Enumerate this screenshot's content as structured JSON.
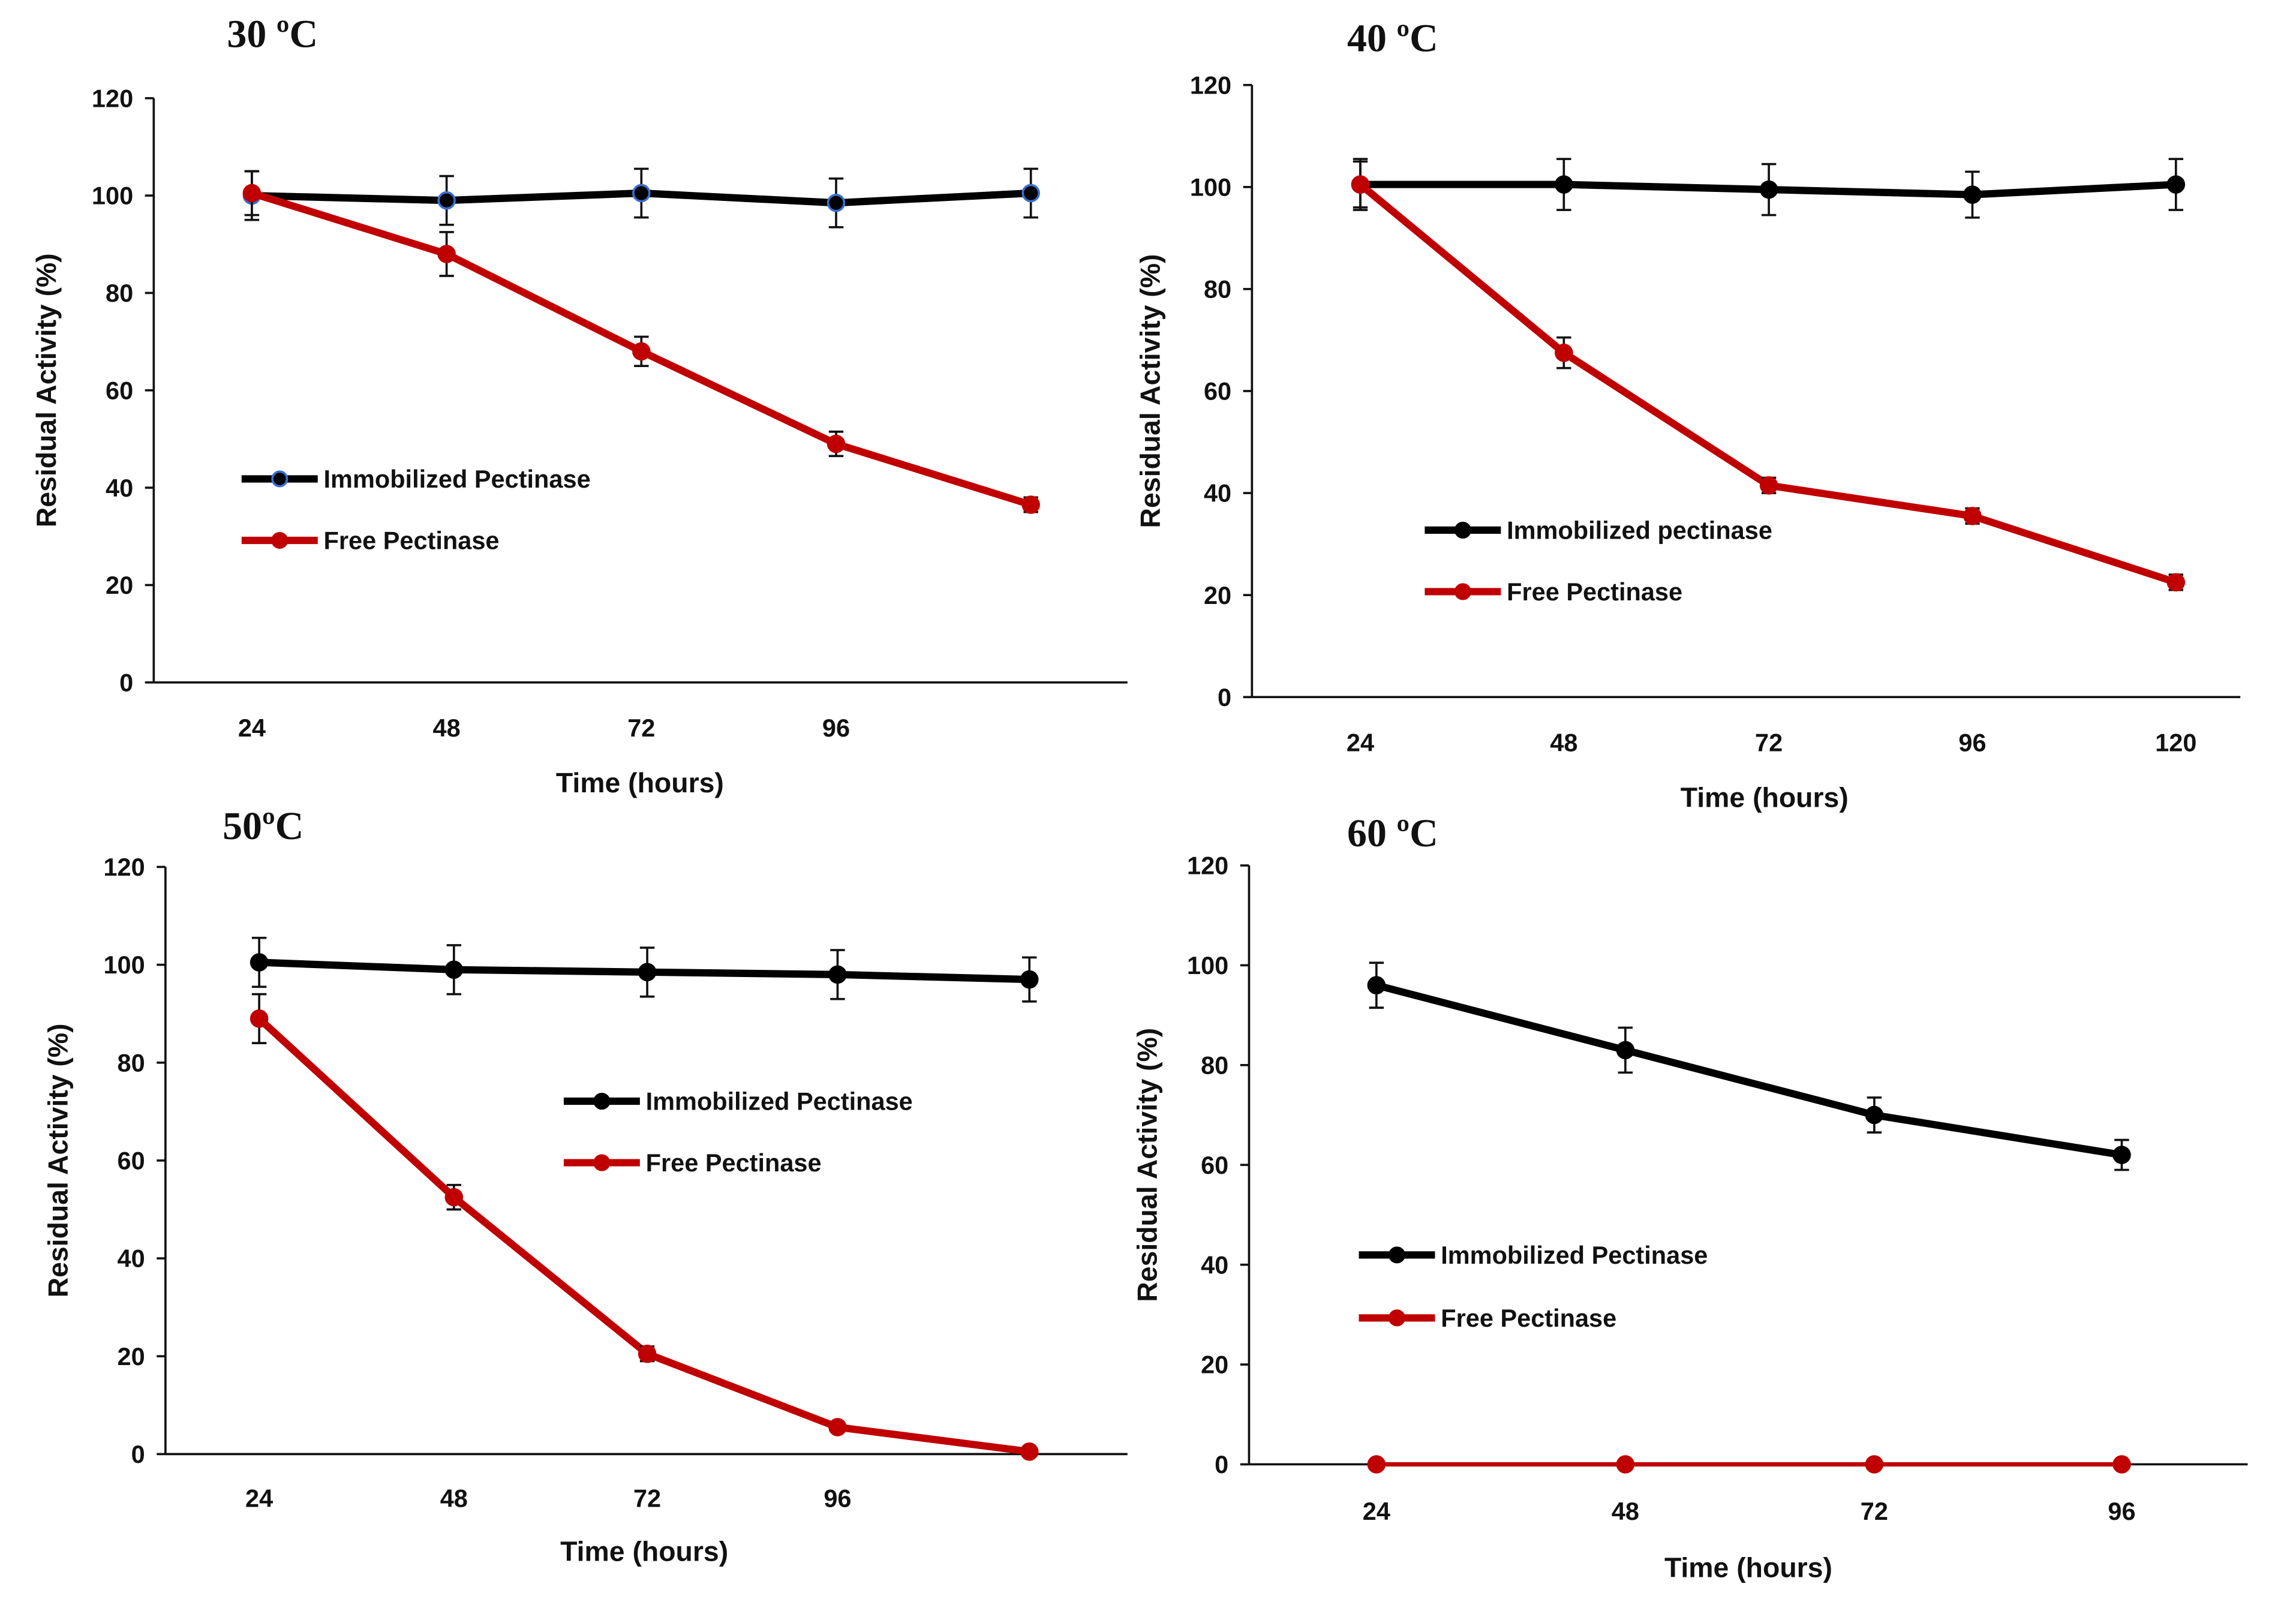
{
  "chart_data": [
    {
      "type": "line",
      "title": "30 ºC",
      "xlabel": "Time (hours)",
      "ylabel": "Residual Activity (%)",
      "ylim": [
        0,
        120
      ],
      "y_ticks": [
        "0",
        "20",
        "40",
        "60",
        "80",
        "100",
        "120"
      ],
      "x": [
        24,
        48,
        72,
        96,
        120
      ],
      "x_tick_labels": [
        "24",
        "48",
        "72",
        "96",
        ""
      ],
      "legend": "center-left",
      "series": [
        {
          "name": "Immobilized Pectinase",
          "color": "#000000",
          "marker_edge": "#3b6fd1",
          "values": [
            100,
            99,
            100.5,
            98.5,
            100.5
          ],
          "errors": [
            5,
            5,
            5,
            5,
            5
          ]
        },
        {
          "name": "Free Pectinase",
          "color": "#c00000",
          "values": [
            100.5,
            88,
            68,
            49,
            36.5
          ],
          "errors": [
            4.5,
            4.5,
            3,
            2.5,
            1.5
          ]
        }
      ]
    },
    {
      "type": "line",
      "title": "40 ºC",
      "xlabel": "Time (hours)",
      "ylabel": "Residual Activity (%)",
      "ylim": [
        0,
        120
      ],
      "y_ticks": [
        "0",
        "20",
        "40",
        "60",
        "80",
        "100",
        "120"
      ],
      "x": [
        24,
        48,
        72,
        96,
        120
      ],
      "x_tick_labels": [
        "24",
        "48",
        "72",
        "96",
        "120"
      ],
      "legend": "center-left",
      "series": [
        {
          "name": "Immobilized pectinase",
          "color": "#000000",
          "values": [
            100.5,
            100.5,
            99.5,
            98.5,
            100.5
          ],
          "errors": [
            5,
            5,
            5,
            4.5,
            5
          ]
        },
        {
          "name": "Free Pectinase",
          "color": "#c00000",
          "values": [
            100.5,
            67.5,
            41.5,
            35.5,
            22.5
          ],
          "errors": [
            4.5,
            3,
            1.5,
            1.5,
            1.5
          ]
        }
      ]
    },
    {
      "type": "line",
      "title": "50ºC",
      "xlabel": "Time (hours)",
      "ylabel": "Residual Activity (%)",
      "ylim": [
        0,
        120
      ],
      "y_ticks": [
        "0",
        "20",
        "40",
        "60",
        "80",
        "100",
        "120"
      ],
      "x": [
        24,
        48,
        72,
        96,
        120
      ],
      "x_tick_labels": [
        "24",
        "48",
        "72",
        "96",
        ""
      ],
      "legend": "center",
      "series": [
        {
          "name": "Immobilized Pectinase",
          "color": "#000000",
          "values": [
            100.5,
            99,
            98.5,
            98,
            97
          ],
          "errors": [
            5,
            5,
            5,
            5,
            4.5
          ]
        },
        {
          "name": "Free Pectinase",
          "color": "#c00000",
          "values": [
            89,
            52.5,
            20.5,
            5.5,
            0.5
          ],
          "errors": [
            5,
            2.5,
            1.5,
            0,
            0
          ]
        }
      ]
    },
    {
      "type": "line",
      "title": "60 ºC",
      "xlabel": "Time (hours)",
      "ylabel": "Residual Activity (%)",
      "ylim": [
        0,
        120
      ],
      "y_ticks": [
        "0",
        "20",
        "40",
        "60",
        "80",
        "100",
        "120"
      ],
      "x": [
        24,
        48,
        72,
        96
      ],
      "x_tick_labels": [
        "24",
        "48",
        "72",
        "96"
      ],
      "legend": "center-left",
      "series": [
        {
          "name": "Immobilized Pectinase",
          "color": "#000000",
          "values": [
            96,
            83,
            70,
            62
          ],
          "errors": [
            4.5,
            4.5,
            3.5,
            3
          ]
        },
        {
          "name": "Free Pectinase",
          "color": "#c00000",
          "values": [
            0,
            0,
            0,
            0
          ],
          "errors": [
            0,
            0,
            0,
            0
          ]
        }
      ]
    }
  ]
}
